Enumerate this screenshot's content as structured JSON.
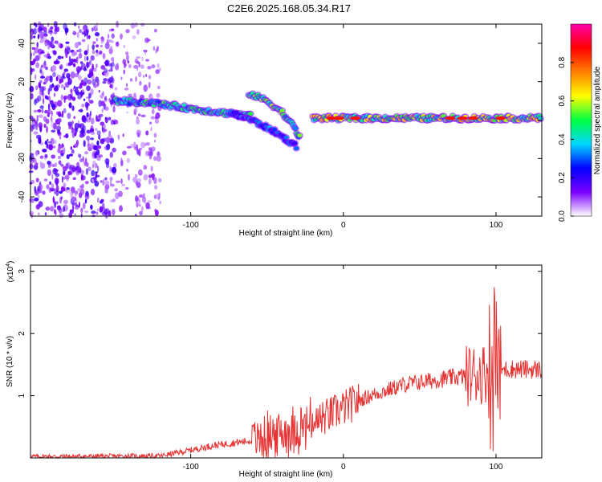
{
  "title": "C2E6.2025.168.05.34.R17",
  "chart_data": [
    {
      "type": "heatmap",
      "name": "spectrogram",
      "xlabel": "Height of straight line (km)",
      "ylabel": "Frequency (Hz)",
      "xlim": [
        -205,
        130
      ],
      "ylim": [
        -50,
        50
      ],
      "xticks": [
        -100,
        0,
        100
      ],
      "yticks": [
        -40,
        -20,
        0,
        20,
        40
      ],
      "colorbar": {
        "label": "Normalized spectral amplitude",
        "range": [
          0,
          1
        ],
        "ticks": [
          0.0,
          0.2,
          0.4,
          0.6,
          0.8
        ],
        "tick_labels": [
          "0.0",
          "0.2",
          "0.4",
          "0.6",
          "0.8"
        ],
        "colors": [
          "#ffffff",
          "#7b00ff",
          "#0000ff",
          "#00d8ff",
          "#00ff40",
          "#ffff00",
          "#ff8000",
          "#ff0000",
          "#ff00aa"
        ]
      },
      "ridges": [
        {
          "x": [
            -150,
            -125,
            -100,
            -80,
            -60
          ],
          "y": [
            10,
            9,
            6,
            4,
            2
          ],
          "amp": 0.45
        },
        {
          "x": [
            -62,
            -50,
            -40,
            -32,
            -28
          ],
          "y": [
            14,
            10,
            4,
            -4,
            -10
          ],
          "amp": 0.5
        },
        {
          "x": [
            -75,
            -60,
            -45,
            -30
          ],
          "y": [
            4,
            0,
            -6,
            -14
          ],
          "amp": 0.3
        },
        {
          "x": [
            -20,
            0,
            20,
            50,
            80,
            100,
            130
          ],
          "y": [
            1,
            1,
            1,
            1,
            1,
            1,
            1
          ],
          "amp": 0.6
        }
      ]
    },
    {
      "type": "line",
      "name": "snr",
      "xlabel": "Height of straight line (km)",
      "ylabel": "SNR (10 * v/v)",
      "multiplier_label": "(x10",
      "multiplier_exp": "4",
      "multiplier_close": ")",
      "xlim": [
        -205,
        130
      ],
      "ylim": [
        0,
        3.1
      ],
      "xticks": [
        -100,
        0,
        100
      ],
      "yticks": [
        1,
        2,
        3
      ],
      "color": "#e63232",
      "envelope": {
        "x": [
          -205,
          -120,
          -105,
          -85,
          -60,
          -40,
          -20,
          -10,
          0,
          10,
          20,
          30,
          40,
          60,
          80,
          90,
          95,
          100,
          105,
          110,
          130
        ],
        "y": [
          0.02,
          0.03,
          0.1,
          0.2,
          0.28,
          0.4,
          0.55,
          0.68,
          0.8,
          0.92,
          1.02,
          1.1,
          1.18,
          1.25,
          1.32,
          1.36,
          1.38,
          1.4,
          1.42,
          1.43,
          1.42
        ]
      }
    }
  ]
}
